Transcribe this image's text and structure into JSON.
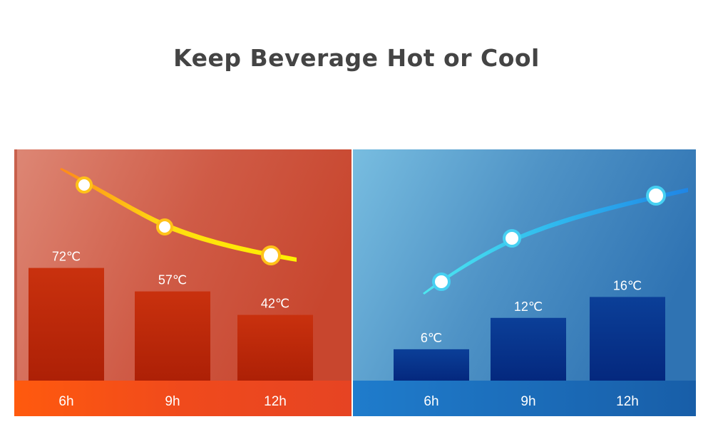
{
  "page": {
    "title": "Keep Beverage Hot or Cool"
  },
  "colors": {
    "hot_bar": "#c22d0c",
    "hot_axis": "#ff4a12",
    "cold_bar": "#062d86",
    "cold_axis": "#1f6fc0"
  },
  "chart_data": [
    {
      "type": "bar",
      "categories": [
        "6h",
        "9h",
        "12h"
      ],
      "values": [
        72,
        57,
        42
      ],
      "value_labels": [
        "72℃",
        "57℃",
        "42℃"
      ],
      "title": "",
      "xlabel": "",
      "ylabel": "",
      "ylim": [
        0,
        100
      ],
      "grid": false,
      "trend_curve": "descending"
    },
    {
      "type": "bar",
      "categories": [
        "6h",
        "9h",
        "12h"
      ],
      "values": [
        6,
        12,
        16
      ],
      "value_labels": [
        "6℃",
        "12℃",
        "16℃"
      ],
      "title": "",
      "xlabel": "",
      "ylabel": "",
      "ylim": [
        0,
        20
      ],
      "grid": false,
      "trend_curve": "ascending"
    }
  ]
}
